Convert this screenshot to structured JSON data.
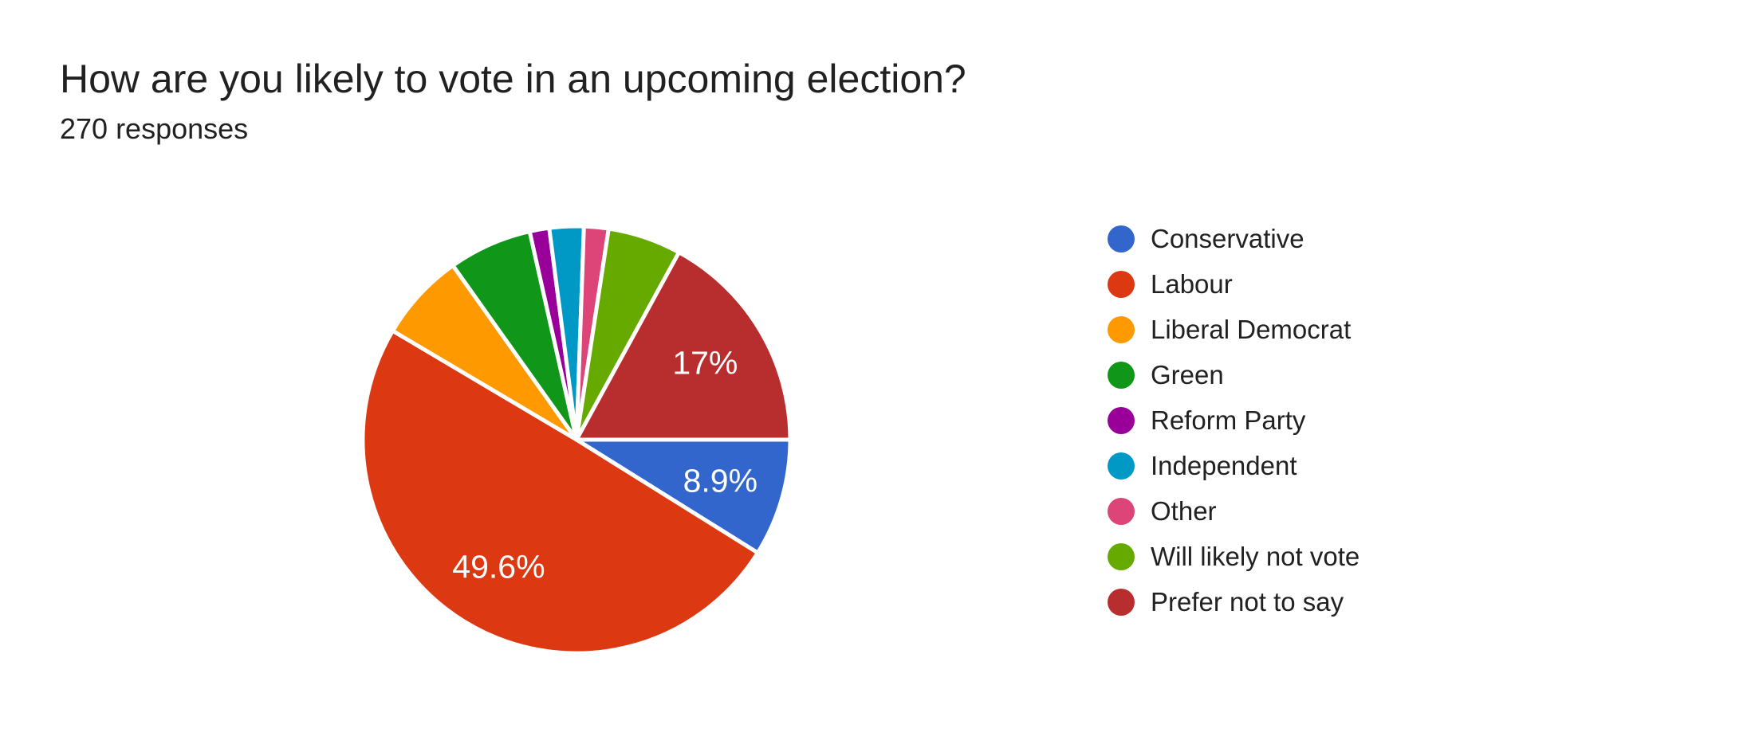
{
  "header": {
    "title": "How are you likely to vote in an upcoming election?",
    "subtitle": "270 responses"
  },
  "chart_data": {
    "type": "pie",
    "title": "How are you likely to vote in an upcoming election?",
    "subtitle": "270 responses",
    "total_responses": 270,
    "legend_position": "right",
    "start_angle_clockwise_from_12": 90,
    "categories": [
      "Conservative",
      "Labour",
      "Liberal Democrat",
      "Green",
      "Reform Party",
      "Independent",
      "Other",
      "Will likely not vote",
      "Prefer not to say"
    ],
    "values": [
      24,
      134,
      18,
      17,
      4,
      7,
      5,
      15,
      46
    ],
    "percentages": [
      8.9,
      49.6,
      6.7,
      6.3,
      1.5,
      2.6,
      1.9,
      5.6,
      17.0
    ],
    "slice_labels": [
      "8.9%",
      "49.6%",
      "",
      "",
      "",
      "",
      "",
      "",
      "17%"
    ],
    "colors": [
      "#3366CC",
      "#DC3912",
      "#FF9900",
      "#109618",
      "#990099",
      "#0099C6",
      "#DD4477",
      "#66AA00",
      "#B82E2E"
    ],
    "slice_border_color": "#ffffff",
    "label_text_color": "#ffffff"
  }
}
